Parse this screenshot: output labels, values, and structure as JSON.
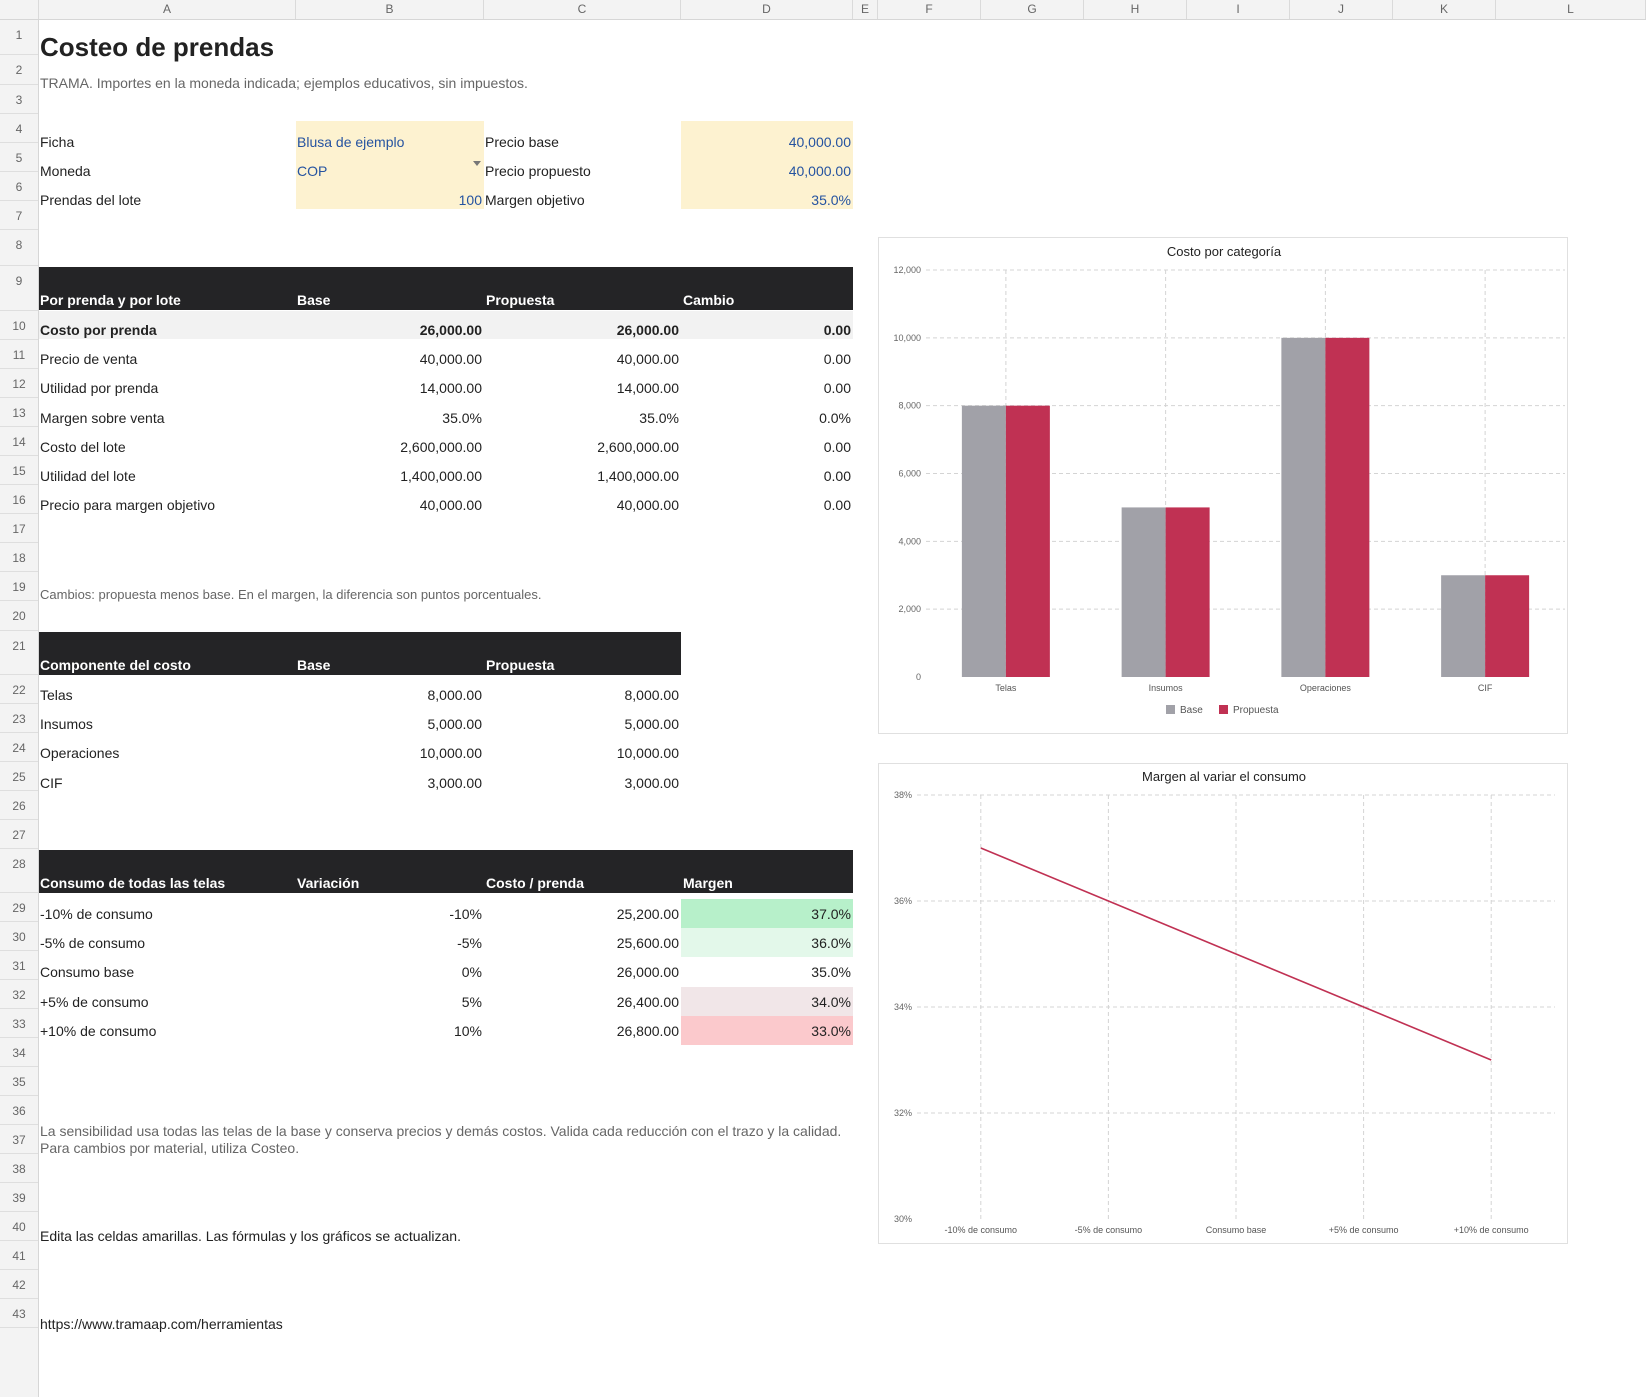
{
  "columns": [
    "A",
    "B",
    "C",
    "D",
    "E",
    "F",
    "G",
    "H",
    "I",
    "J",
    "K",
    "L"
  ],
  "rows": [
    "1",
    "2",
    "3",
    "4",
    "5",
    "6",
    "7",
    "8",
    "9",
    "10",
    "11",
    "12",
    "13",
    "14",
    "15",
    "16",
    "17",
    "18",
    "19",
    "20",
    "21",
    "22",
    "23",
    "24",
    "25",
    "26",
    "27",
    "28",
    "29",
    "30",
    "31",
    "32",
    "33",
    "34",
    "35",
    "36",
    "37",
    "38",
    "39",
    "40",
    "41",
    "42",
    "43"
  ],
  "header": {
    "title": "Costeo de prendas",
    "subtitle": "TRAMA. Importes en la moneda indicada; ejemplos educativos, sin impuestos."
  },
  "inputs": {
    "ficha_label": "Ficha",
    "ficha_value": "Blusa de ejemplo",
    "moneda_label": "Moneda",
    "moneda_value": "COP",
    "prendas_label": "Prendas del lote",
    "prendas_value": "100",
    "precio_base_label": "Precio base",
    "precio_base_value": "40,000.00",
    "precio_prop_label": "Precio propuesto",
    "precio_prop_value": "40,000.00",
    "margen_obj_label": "Margen objetivo",
    "margen_obj_value": "35.0%"
  },
  "summary": {
    "headers": [
      "Por prenda y por lote",
      "Base",
      "Propuesta",
      "Cambio"
    ],
    "rows": [
      [
        "Costo por prenda",
        "26,000.00",
        "26,000.00",
        "0.00"
      ],
      [
        "Precio de venta",
        "40,000.00",
        "40,000.00",
        "0.00"
      ],
      [
        "Utilidad por prenda",
        "14,000.00",
        "14,000.00",
        "0.00"
      ],
      [
        "Margen sobre venta",
        "35.0%",
        "35.0%",
        "0.0%"
      ],
      [
        "Costo del lote",
        "2,600,000.00",
        "2,600,000.00",
        "0.00"
      ],
      [
        "Utilidad del lote",
        "1,400,000.00",
        "1,400,000.00",
        "0.00"
      ],
      [
        "Precio para margen objetivo",
        "40,000.00",
        "40,000.00",
        "0.00"
      ]
    ],
    "note": "Cambios: propuesta menos base. En el margen, la diferencia son puntos porcentuales."
  },
  "components": {
    "headers": [
      "Componente del costo",
      "Base",
      "Propuesta"
    ],
    "rows": [
      [
        "Telas",
        "8,000.00",
        "8,000.00"
      ],
      [
        "Insumos",
        "5,000.00",
        "5,000.00"
      ],
      [
        "Operaciones",
        "10,000.00",
        "10,000.00"
      ],
      [
        "CIF",
        "3,000.00",
        "3,000.00"
      ]
    ]
  },
  "sensitivity": {
    "headers": [
      "Consumo de todas las telas",
      "Variación",
      "Costo / prenda",
      "Margen"
    ],
    "rows": [
      [
        "-10% de consumo",
        "-10%",
        "25,200.00",
        "37.0%"
      ],
      [
        "-5% de consumo",
        "-5%",
        "25,600.00",
        "36.0%"
      ],
      [
        "Consumo base",
        "0%",
        "26,000.00",
        "35.0%"
      ],
      [
        "+5% de consumo",
        "5%",
        "26,400.00",
        "34.0%"
      ],
      [
        "+10% de consumo",
        "10%",
        "26,800.00",
        "33.0%"
      ]
    ],
    "margin_colors": [
      "#b7f0ca",
      "#e3f8ea",
      "#ffffff",
      "#f1e6e8",
      "#fbc9cc"
    ]
  },
  "notes": {
    "sens_line1": "La sensibilidad usa todas las telas de la base y conserva precios y demás costos. Valida cada reducción con el trazo y la calidad.",
    "sens_line2": "Para cambios por material, utiliza Costeo.",
    "edit": "Edita las celdas amarillas. Las fórmulas y los gráficos se actualizan.",
    "url": "https://www.tramaap.com/herramientas"
  },
  "colors": {
    "base": "#a1a1a8",
    "propuesta": "#c03153",
    "header_bg": "#242426",
    "input_bg": "#fdf2d0",
    "input_text": "#2553a0"
  },
  "chart_data": [
    {
      "type": "bar",
      "title": "Costo por categoría",
      "categories": [
        "Telas",
        "Insumos",
        "Operaciones",
        "CIF"
      ],
      "series": [
        {
          "name": "Base",
          "values": [
            8000,
            5000,
            10000,
            3000
          ]
        },
        {
          "name": "Propuesta",
          "values": [
            8000,
            5000,
            10000,
            3000
          ]
        }
      ],
      "ylim": [
        0,
        12000
      ],
      "yticks": [
        "0",
        "2,000",
        "4,000",
        "6,000",
        "8,000",
        "10,000",
        "12,000"
      ],
      "grid": true,
      "legend": "bottom"
    },
    {
      "type": "line",
      "title": "Margen al variar el consumo",
      "categories": [
        "-10% de consumo",
        "-5% de consumo",
        "Consumo base",
        "+5% de consumo",
        "+10% de consumo"
      ],
      "series": [
        {
          "values": [
            37,
            36,
            35,
            34,
            33
          ]
        }
      ],
      "ylim": [
        30,
        38
      ],
      "yticks": [
        "30%",
        "32%",
        "34%",
        "36%",
        "38%"
      ],
      "grid": true,
      "legend": "none"
    }
  ]
}
